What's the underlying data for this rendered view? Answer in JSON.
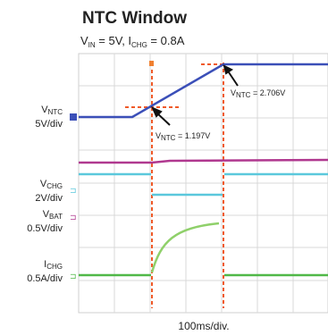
{
  "title": "NTC Window",
  "subtitle": [
    "V",
    "IN",
    " = 5V, I",
    "CHG",
    " = 0.8A"
  ],
  "channels": [
    {
      "name": [
        "V",
        "NTC"
      ],
      "scale": "5V/div"
    },
    {
      "name": [
        "V",
        "CHG"
      ],
      "scale": "2V/div"
    },
    {
      "name": [
        "V",
        "BAT"
      ],
      "scale": "0.5V/div"
    },
    {
      "name": [
        "I",
        "CHG"
      ],
      "scale": "0.5A/div"
    }
  ],
  "annotations": [
    {
      "text": [
        "V",
        "NTC",
        " = 1.197V"
      ]
    },
    {
      "text": [
        "V",
        "NTC",
        " = 2.706V"
      ]
    }
  ],
  "time_scale": "100ms/div."
}
